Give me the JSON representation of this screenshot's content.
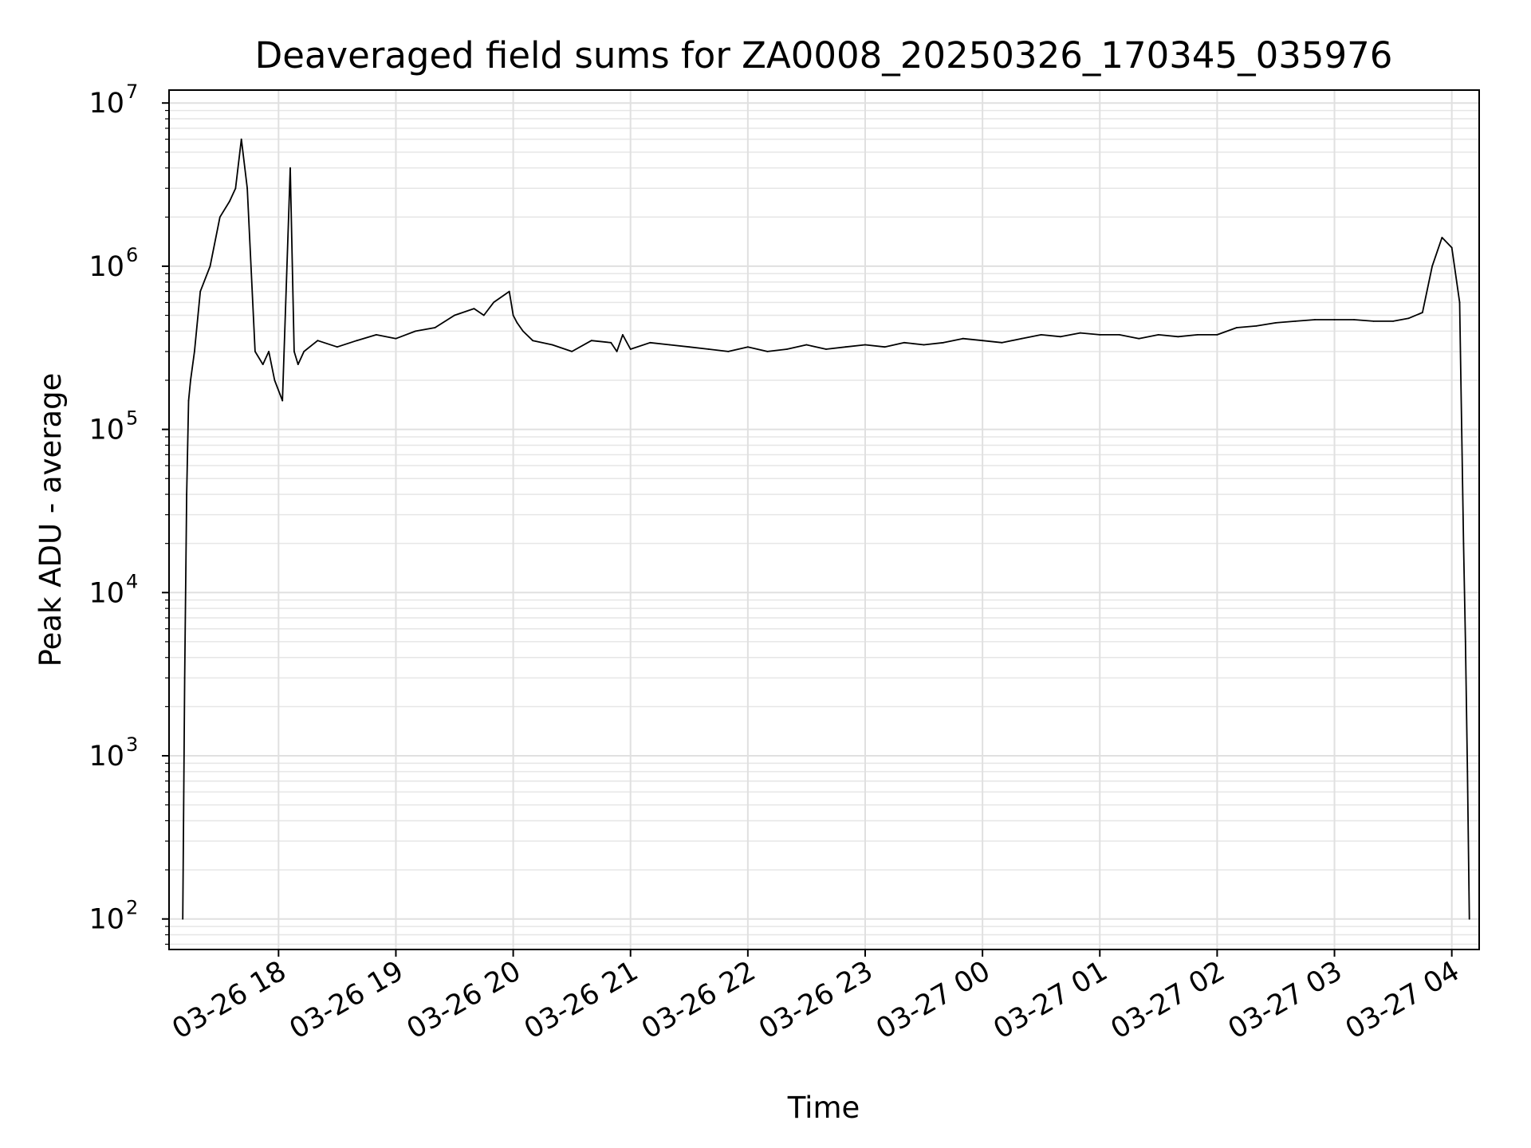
{
  "chart_data": {
    "type": "line",
    "title": "Deaveraged field sums for ZA0008_20250326_170345_035976",
    "xlabel": "Time",
    "ylabel": "Peak ADU - average",
    "y_scale": "log",
    "ylim": [
      65,
      12000000
    ],
    "xlim": [
      "2025-03-26 17:04",
      "2025-03-27 04:14"
    ],
    "grid": "major and minor",
    "line_color": "#000000",
    "x_ticks": [
      {
        "value": "2025-03-26 18:00",
        "label": "03-26 18"
      },
      {
        "value": "2025-03-26 19:00",
        "label": "03-26 19"
      },
      {
        "value": "2025-03-26 20:00",
        "label": "03-26 20"
      },
      {
        "value": "2025-03-26 21:00",
        "label": "03-26 21"
      },
      {
        "value": "2025-03-26 22:00",
        "label": "03-26 22"
      },
      {
        "value": "2025-03-26 23:00",
        "label": "03-26 23"
      },
      {
        "value": "2025-03-27 00:00",
        "label": "03-27 00"
      },
      {
        "value": "2025-03-27 01:00",
        "label": "03-27 01"
      },
      {
        "value": "2025-03-27 02:00",
        "label": "03-27 02"
      },
      {
        "value": "2025-03-27 03:00",
        "label": "03-27 03"
      },
      {
        "value": "2025-03-27 04:00",
        "label": "03-27 04"
      }
    ],
    "y_ticks": [
      {
        "value": 100,
        "base": "10",
        "exp": "2"
      },
      {
        "value": 1000,
        "base": "10",
        "exp": "3"
      },
      {
        "value": 10000,
        "base": "10",
        "exp": "4"
      },
      {
        "value": 100000,
        "base": "10",
        "exp": "5"
      },
      {
        "value": 1000000,
        "base": "10",
        "exp": "6"
      },
      {
        "value": 10000000,
        "base": "10",
        "exp": "7"
      }
    ],
    "series": [
      {
        "x": [
          "2025-03-26 17:11",
          "2025-03-26 17:12",
          "2025-03-26 17:13",
          "2025-03-26 17:14",
          "2025-03-26 17:15",
          "2025-03-26 17:17",
          "2025-03-26 17:20",
          "2025-03-26 17:25",
          "2025-03-26 17:30",
          "2025-03-26 17:35",
          "2025-03-26 17:38",
          "2025-03-26 17:41",
          "2025-03-26 17:44",
          "2025-03-26 17:48",
          "2025-03-26 17:52",
          "2025-03-26 17:55",
          "2025-03-26 17:58",
          "2025-03-26 18:02",
          "2025-03-26 18:06",
          "2025-03-26 18:08",
          "2025-03-26 18:10",
          "2025-03-26 18:13",
          "2025-03-26 18:20",
          "2025-03-26 18:30",
          "2025-03-26 18:40",
          "2025-03-26 18:50",
          "2025-03-26 19:00",
          "2025-03-26 19:10",
          "2025-03-26 19:20",
          "2025-03-26 19:30",
          "2025-03-26 19:40",
          "2025-03-26 19:45",
          "2025-03-26 19:50",
          "2025-03-26 19:58",
          "2025-03-26 20:00",
          "2025-03-26 20:02",
          "2025-03-26 20:05",
          "2025-03-26 20:10",
          "2025-03-26 20:20",
          "2025-03-26 20:30",
          "2025-03-26 20:40",
          "2025-03-26 20:50",
          "2025-03-26 20:53",
          "2025-03-26 20:56",
          "2025-03-26 21:00",
          "2025-03-26 21:10",
          "2025-03-26 21:20",
          "2025-03-26 21:30",
          "2025-03-26 21:40",
          "2025-03-26 21:50",
          "2025-03-26 22:00",
          "2025-03-26 22:10",
          "2025-03-26 22:20",
          "2025-03-26 22:30",
          "2025-03-26 22:40",
          "2025-03-26 22:50",
          "2025-03-26 23:00",
          "2025-03-26 23:10",
          "2025-03-26 23:20",
          "2025-03-26 23:30",
          "2025-03-26 23:40",
          "2025-03-26 23:50",
          "2025-03-27 00:00",
          "2025-03-27 00:10",
          "2025-03-27 00:20",
          "2025-03-27 00:30",
          "2025-03-27 00:40",
          "2025-03-27 00:50",
          "2025-03-27 01:00",
          "2025-03-27 01:10",
          "2025-03-27 01:20",
          "2025-03-27 01:30",
          "2025-03-27 01:40",
          "2025-03-27 01:50",
          "2025-03-27 02:00",
          "2025-03-27 02:10",
          "2025-03-27 02:20",
          "2025-03-27 02:30",
          "2025-03-27 02:40",
          "2025-03-27 02:50",
          "2025-03-27 03:00",
          "2025-03-27 03:10",
          "2025-03-27 03:20",
          "2025-03-27 03:30",
          "2025-03-27 03:38",
          "2025-03-27 03:45",
          "2025-03-27 03:50",
          "2025-03-27 03:55",
          "2025-03-27 04:00",
          "2025-03-27 04:04",
          "2025-03-27 04:06",
          "2025-03-27 04:07",
          "2025-03-27 04:08",
          "2025-03-27 04:09"
        ],
        "y": [
          100,
          3000,
          40000,
          150000,
          200000,
          300000,
          700000,
          1000000,
          2000000,
          2500000,
          3000000,
          6000000,
          3000000,
          300000,
          250000,
          300000,
          200000,
          150000,
          4000000,
          300000,
          250000,
          300000,
          350000,
          320000,
          350000,
          380000,
          360000,
          400000,
          420000,
          500000,
          550000,
          500000,
          600000,
          700000,
          500000,
          450000,
          400000,
          350000,
          330000,
          300000,
          350000,
          340000,
          300000,
          380000,
          310000,
          340000,
          330000,
          320000,
          310000,
          300000,
          320000,
          300000,
          310000,
          330000,
          310000,
          320000,
          330000,
          320000,
          340000,
          330000,
          340000,
          360000,
          350000,
          340000,
          360000,
          380000,
          370000,
          390000,
          380000,
          380000,
          360000,
          380000,
          370000,
          380000,
          380000,
          420000,
          430000,
          450000,
          460000,
          470000,
          470000,
          470000,
          460000,
          460000,
          480000,
          520000,
          1000000,
          1500000,
          1300000,
          600000,
          20000,
          5000,
          800,
          100
        ]
      }
    ]
  }
}
